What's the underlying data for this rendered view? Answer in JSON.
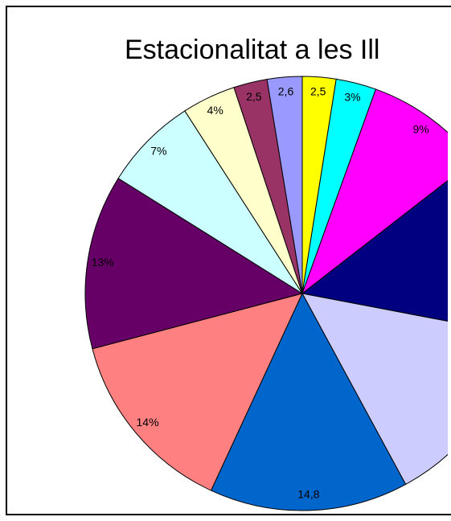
{
  "chart_data": {
    "type": "pie",
    "title": "Estacionalitat a les Ill",
    "values": [
      2.5,
      3,
      9,
      13.5,
      14.1,
      14.8,
      14,
      13,
      7,
      4,
      2.5,
      2.6
    ],
    "value_labels": [
      "2,5",
      "3%",
      "9%",
      null,
      null,
      "14,8",
      "14%",
      "13%",
      "7%",
      "4%",
      "2,5",
      "2,6"
    ],
    "colors": [
      "#ffff00",
      "#00ffff",
      "#ff00ff",
      "#000080",
      "#ccccff",
      "#0066cc",
      "#ff8080",
      "#660066",
      "#ccffff",
      "#ffffcc",
      "#993366",
      "#9999ff"
    ]
  }
}
